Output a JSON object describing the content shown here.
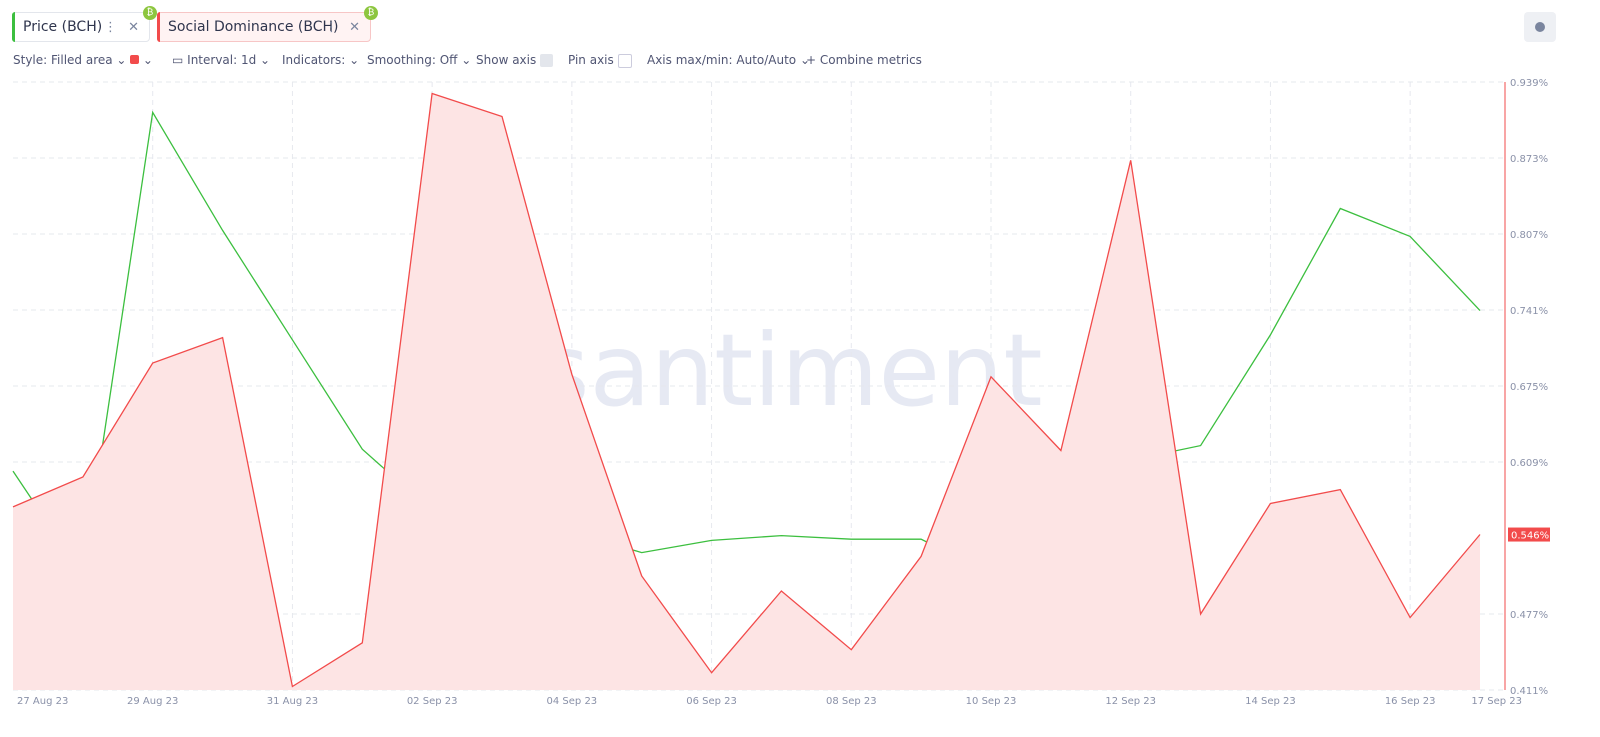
{
  "toolbar": {
    "tabs": [
      "Price (BCH)",
      "Social Dominance (BCH)"
    ],
    "style": "Style: Filled area",
    "interval": "Interval: 1d",
    "indicators": "Indicators:",
    "smoothing": "Smoothing: Off",
    "show_axis": "Show axis",
    "pin_axis": "Pin axis",
    "axis_range": "Axis max/min: Auto/Auto",
    "combine": "Combine metrics"
  },
  "watermark": "santiment",
  "chart_data": {
    "type": "line",
    "categories": [
      "27 Aug 23",
      null,
      "29 Aug 23",
      null,
      "31 Aug 23",
      null,
      "02 Sep 23",
      null,
      "04 Sep 23",
      null,
      "06 Sep 23",
      null,
      "08 Sep 23",
      null,
      "10 Sep 23",
      null,
      "12 Sep 23",
      null,
      "14 Sep 23",
      null,
      "16 Sep 23",
      "17 Sep 23"
    ],
    "series": [
      {
        "name": "Price (BCH)",
        "color": "#3cbf3f",
        "axis": "y2",
        "values": [
          198.0,
          189.4,
          227.5,
          217.8,
          208.8,
          199.8,
          194.7,
          196.0,
          193.0,
          191.3,
          192.3,
          192.7,
          192.4,
          192.4,
          189.5,
          182.1,
          198.9,
          200.1,
          209.2,
          219.6,
          217.3,
          211.2
        ]
      },
      {
        "name": "Social Dominance (BCH)",
        "color": "#f24b4b",
        "fill": "#fde4e4",
        "values": [
          0.57,
          0.596,
          0.695,
          0.717,
          0.414,
          0.452,
          0.929,
          0.909,
          0.685,
          0.51,
          0.426,
          0.497,
          0.446,
          0.527,
          0.683,
          0.619,
          0.871,
          0.477,
          0.573,
          0.585,
          0.474,
          0.546
        ],
        "value_labels": [
          null,
          null,
          null,
          null,
          null,
          null,
          null,
          null,
          null,
          null,
          null,
          null,
          null,
          null,
          null,
          null,
          null,
          null,
          null,
          null,
          null,
          "0.546%"
        ]
      }
    ],
    "ylim": [
      0.411,
      0.939
    ],
    "yticks": [
      {
        "value": 0.939,
        "label": "0.939%"
      },
      {
        "value": 0.873,
        "label": "0.873%"
      },
      {
        "value": 0.807,
        "label": "0.807%"
      },
      {
        "value": 0.741,
        "label": "0.741%"
      },
      {
        "value": 0.675,
        "label": "0.675%"
      },
      {
        "value": 0.609,
        "label": "0.609%"
      },
      {
        "value": 0.477,
        "label": "0.477%"
      },
      {
        "value": 0.411,
        "label": "0.411%"
      }
    ],
    "y2lim": [
      180,
      230
    ],
    "grid": true
  }
}
